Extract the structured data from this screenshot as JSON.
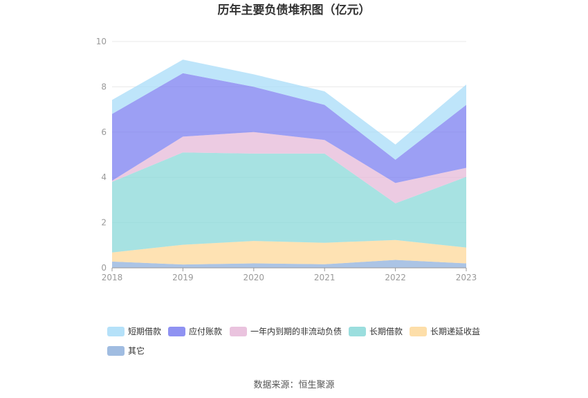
{
  "chart_data": {
    "type": "area",
    "stacked": true,
    "title": "历年主要负债堆积图（亿元）",
    "x": [
      "2018",
      "2019",
      "2020",
      "2021",
      "2022",
      "2023"
    ],
    "y_ticks": [
      "0",
      "2",
      "4",
      "6",
      "8",
      "10"
    ],
    "ylim": [
      0,
      10
    ],
    "grid": true,
    "legend_position": "bottom",
    "series": [
      {
        "name": "其它",
        "color": "#8fb0dc",
        "values": [
          0.28,
          0.15,
          0.2,
          0.16,
          0.35,
          0.2
        ]
      },
      {
        "name": "长期递延收益",
        "color": "#fdd89a",
        "values": [
          0.4,
          0.87,
          0.99,
          0.95,
          0.88,
          0.7
        ]
      },
      {
        "name": "长期借款",
        "color": "#8ad8d8",
        "values": [
          3.12,
          4.08,
          3.86,
          3.94,
          1.62,
          3.12
        ]
      },
      {
        "name": "一年内到期的非流动负债",
        "color": "#e6b9d8",
        "values": [
          0.05,
          0.7,
          0.95,
          0.6,
          0.9,
          0.4
        ]
      },
      {
        "name": "应付账款",
        "color": "#7b7ff0",
        "values": [
          2.95,
          2.8,
          2.0,
          1.55,
          1.03,
          2.78
        ]
      },
      {
        "name": "短期借款",
        "color": "#a8dcf8",
        "values": [
          0.62,
          0.6,
          0.55,
          0.6,
          0.67,
          0.9
        ]
      }
    ],
    "legend_order": [
      "短期借款",
      "应付账款",
      "一年内到期的非流动负债",
      "长期借款",
      "长期递延收益",
      "其它"
    ]
  },
  "source": "数据来源：恒生聚源"
}
